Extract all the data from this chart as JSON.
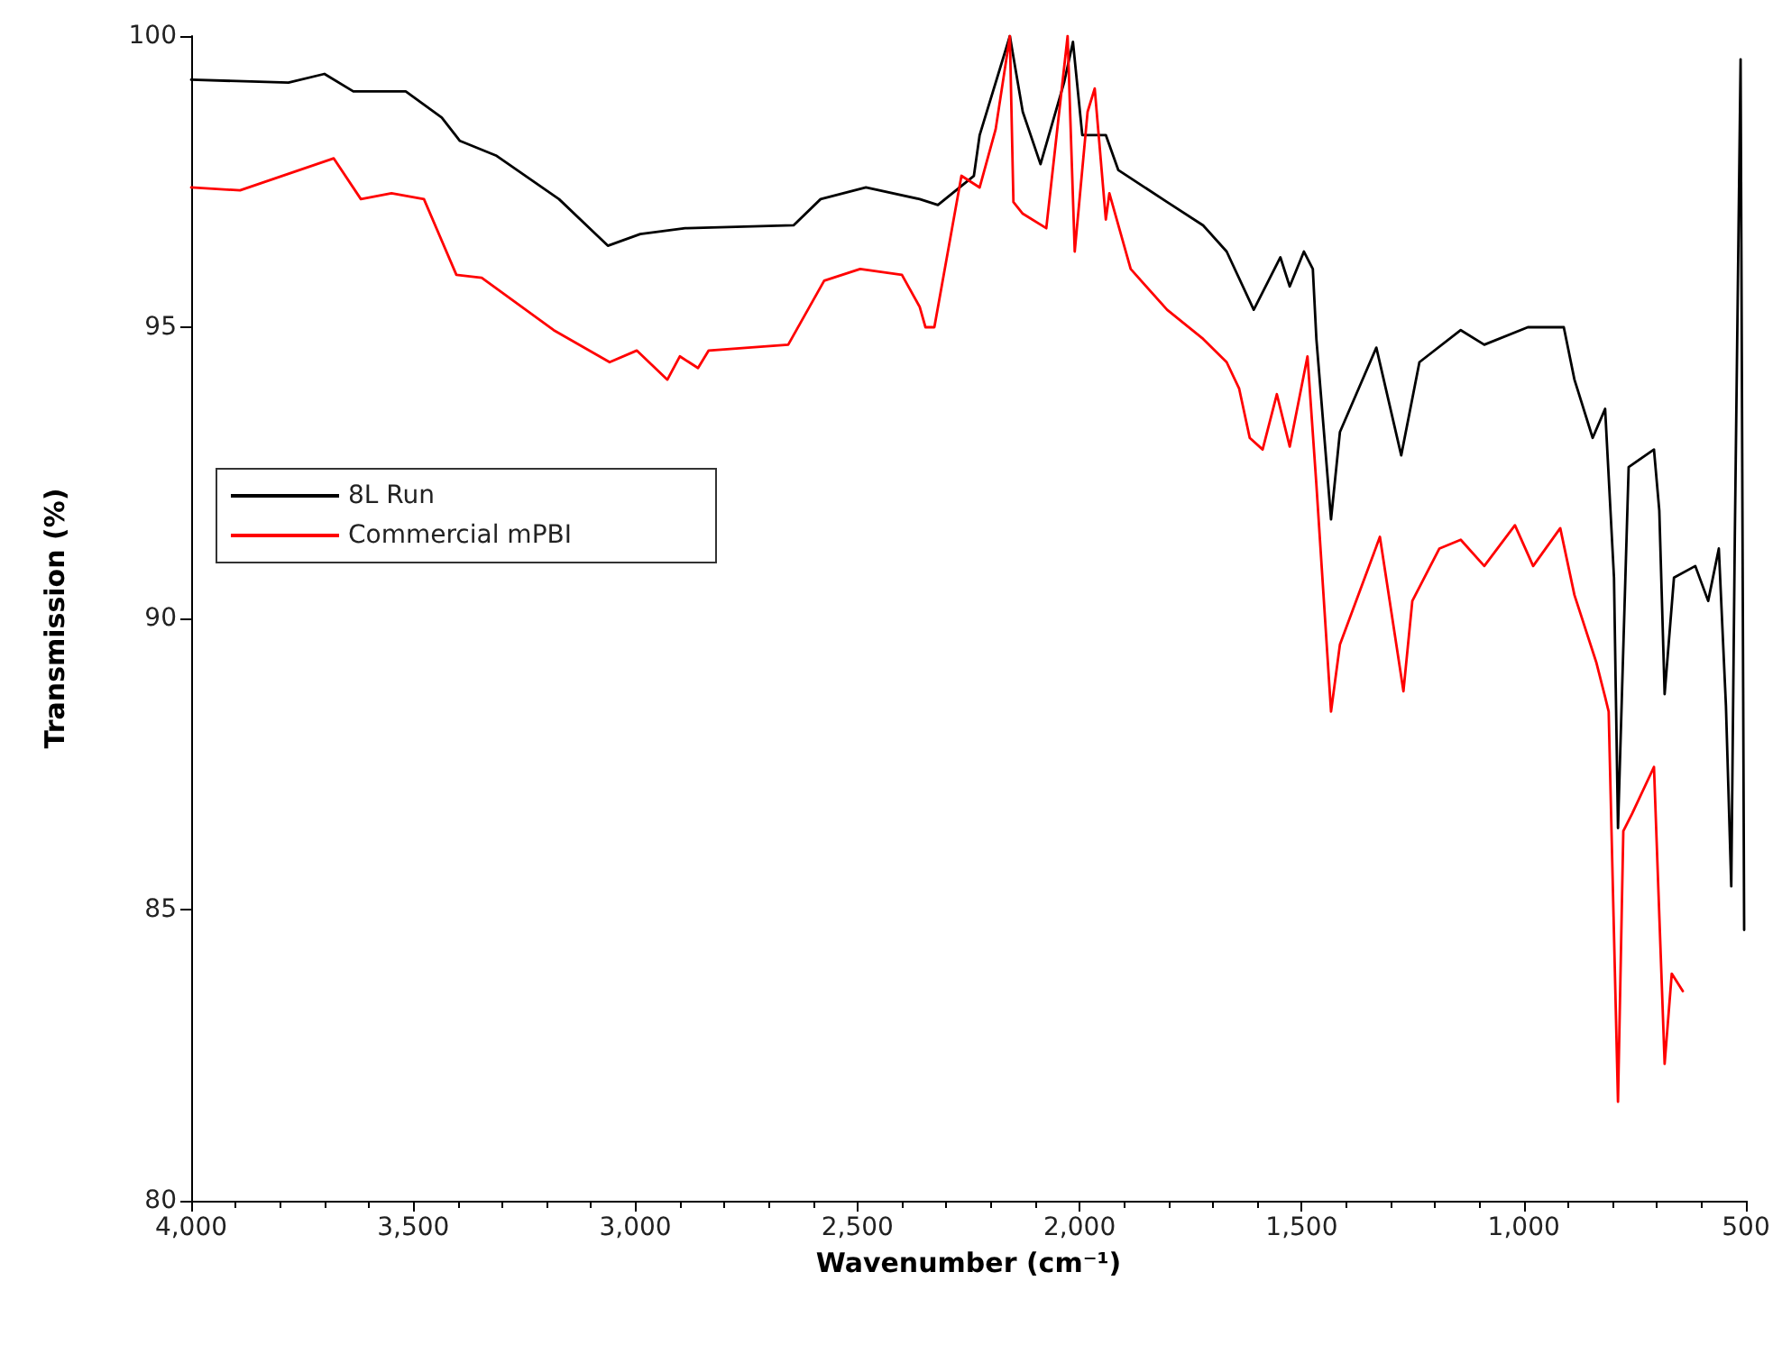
{
  "chart_data": {
    "type": "line",
    "xlabel": "Wavenumber (cm⁻¹)",
    "ylabel": "Transmission (%)",
    "xlim": [
      4000,
      500
    ],
    "ylim": [
      80,
      100
    ],
    "xticks": [
      {
        "value": 4000,
        "label": "4,000"
      },
      {
        "value": 3500,
        "label": "3,500"
      },
      {
        "value": 3000,
        "label": "3,000"
      },
      {
        "value": 2500,
        "label": "2,500"
      },
      {
        "value": 2000,
        "label": "2,000"
      },
      {
        "value": 1500,
        "label": "1,500"
      },
      {
        "value": 1000,
        "label": "1,000"
      },
      {
        "value": 500,
        "label": "500"
      }
    ],
    "yticks": [
      80,
      85,
      90,
      95,
      100
    ],
    "grid": false,
    "legend": "left",
    "marker": "none",
    "line_style": "solid",
    "series": [
      {
        "name": "8L Run",
        "color": "#000000",
        "x": [
          4000,
          3781,
          3700,
          3635,
          3517,
          3436,
          3395,
          3314,
          3172,
          3062,
          2989,
          2888,
          2644,
          2583,
          2481,
          2360,
          2319,
          2238,
          2225,
          2157,
          2128,
          2088,
          2035,
          2015,
          1994,
          1941,
          1913,
          1803,
          1722,
          1669,
          1608,
          1548,
          1527,
          1495,
          1475,
          1467,
          1434,
          1414,
          1332,
          1276,
          1235,
          1142,
          1089,
          991,
          910,
          886,
          845,
          817,
          797,
          788,
          764,
          707,
          695,
          683,
          662,
          614,
          585,
          561,
          545,
          533,
          525,
          512,
          504
        ],
        "values": [
          99.25,
          99.2,
          99.35,
          99.05,
          99.05,
          98.6,
          98.2,
          97.95,
          97.2,
          96.4,
          96.6,
          96.7,
          96.75,
          97.2,
          97.4,
          97.2,
          97.1,
          97.6,
          98.3,
          100,
          98.7,
          97.8,
          99.2,
          99.9,
          98.3,
          98.3,
          97.7,
          97.15,
          96.75,
          96.3,
          95.3,
          96.2,
          95.7,
          96.3,
          96.0,
          94.8,
          91.7,
          93.2,
          94.65,
          92.8,
          94.4,
          94.95,
          94.7,
          95.0,
          95.0,
          94.1,
          93.1,
          93.6,
          90.7,
          86.4,
          92.6,
          92.9,
          91.85,
          88.7,
          90.7,
          90.9,
          90.3,
          91.2,
          88.5,
          85.4,
          91.4,
          99.6,
          84.65
        ]
      },
      {
        "name": "Commercial mPBI",
        "color": "#ff0000",
        "x": [
          4000,
          3890,
          3679,
          3618,
          3549,
          3476,
          3403,
          3346,
          3184,
          3058,
          2997,
          2928,
          2900,
          2859,
          2835,
          2656,
          2575,
          2494,
          2400,
          2360,
          2347,
          2327,
          2266,
          2225,
          2189,
          2157,
          2149,
          2128,
          2075,
          2027,
          2011,
          1982,
          1966,
          1941,
          1933,
          1885,
          1803,
          1722,
          1669,
          1641,
          1617,
          1588,
          1556,
          1527,
          1487,
          1467,
          1434,
          1414,
          1324,
          1271,
          1251,
          1190,
          1142,
          1089,
          1020,
          979,
          918,
          886,
          837,
          817,
          809,
          788,
          776,
          756,
          707,
          683,
          667,
          642
        ],
        "values": [
          97.4,
          97.35,
          97.9,
          97.2,
          97.3,
          97.2,
          95.9,
          95.85,
          94.95,
          94.4,
          94.6,
          94.1,
          94.5,
          94.3,
          94.6,
          94.7,
          95.8,
          96.0,
          95.9,
          95.35,
          95.0,
          95.0,
          97.6,
          97.4,
          98.4,
          100,
          97.15,
          96.95,
          96.7,
          100,
          96.3,
          98.7,
          99.1,
          96.85,
          97.3,
          96.0,
          95.3,
          94.8,
          94.4,
          93.95,
          93.1,
          92.9,
          93.85,
          92.95,
          94.5,
          92.3,
          88.4,
          89.55,
          91.4,
          88.75,
          90.3,
          91.2,
          91.35,
          90.9,
          91.6,
          90.9,
          91.55,
          90.4,
          89.25,
          88.65,
          88.4,
          81.7,
          86.35,
          86.65,
          87.45,
          82.35,
          83.9,
          83.6
        ]
      }
    ]
  }
}
